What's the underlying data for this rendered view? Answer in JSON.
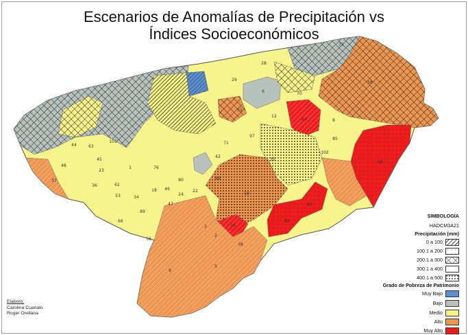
{
  "title": {
    "line1": "Escenarios de Anomalías de Precipitación vs",
    "line2": "Índices Socioeconómicos"
  },
  "legend": {
    "heading": "SIMBOLOGÍA",
    "scenario": "HADCM3A21",
    "precip_heading": "Precipitación (mm)",
    "precip_classes": [
      {
        "label": "0 a 100",
        "pattern": "dense-diagonal-hatch"
      },
      {
        "label": "100.1 a 200",
        "pattern": "sparse-dots"
      },
      {
        "label": "200.1 a 300",
        "pattern": "crosshatch"
      },
      {
        "label": "300.1 a 400",
        "pattern": "blank"
      },
      {
        "label": "400.1 a 500",
        "pattern": "dense-dots"
      }
    ],
    "poverty_heading": "Grado de Pobreza de Patrimonio",
    "poverty_classes": [
      {
        "label": "Muy Bajo",
        "color": "#5b8fd1"
      },
      {
        "label": "Bajo",
        "color": "#b7c2bd"
      },
      {
        "label": "Medio",
        "color": "#f6f48a"
      },
      {
        "label": "Alto",
        "color": "#ee9650"
      },
      {
        "label": "Muy Alto",
        "color": "#ee1c1c"
      }
    ]
  },
  "credits": {
    "label": "Elaboró:",
    "author1": "Carolina Cuanalo",
    "author2": "Roger Orellana"
  },
  "map_labels": [
    "28",
    "29",
    "6",
    "70",
    "31",
    "12",
    "64",
    "8",
    "97",
    "71",
    "85",
    "42",
    "101",
    "44",
    "63",
    "45",
    "48",
    "1",
    "76",
    "80",
    "69",
    "37",
    "23",
    "18",
    "46",
    "24",
    "22",
    "62",
    "36",
    "34",
    "47",
    "53",
    "89",
    "66",
    "102",
    "35",
    "96",
    "56",
    "50",
    "93",
    "16",
    "2",
    "2",
    "38",
    "5",
    "83",
    "9",
    "58",
    "75"
  ]
}
